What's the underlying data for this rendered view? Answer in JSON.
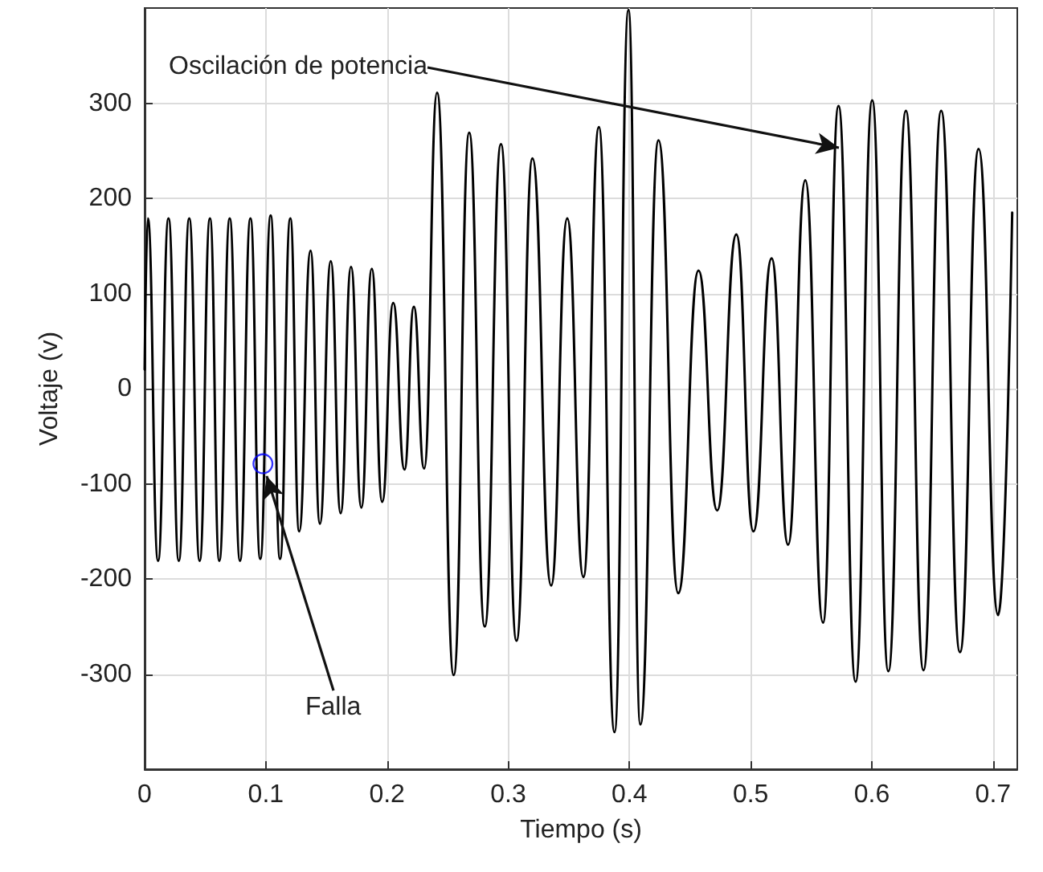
{
  "chart_data": {
    "type": "line",
    "xlabel": "Tiempo (s)",
    "ylabel": "Voltaje (v)",
    "xlim": [
      0,
      0.72
    ],
    "xticks": [
      0,
      0.1,
      0.2,
      0.3,
      0.4,
      0.5,
      0.6,
      0.7
    ],
    "ylim": [
      -400,
      400
    ],
    "yticks": [
      -300,
      -200,
      -100,
      0,
      100,
      200,
      300
    ],
    "grid": true,
    "marker": "none",
    "line_style": "solid",
    "series": [
      {
        "color": "#000000",
        "x": [
          0,
          0.0026,
          0.0111,
          0.0197,
          0.0282,
          0.0368,
          0.0454,
          0.0539,
          0.0616,
          0.0702,
          0.0787,
          0.0873,
          0.0954,
          0.104,
          0.1117,
          0.1202,
          0.1275,
          0.1369,
          0.1446,
          0.1536,
          0.1617,
          0.1703,
          0.1788,
          0.1874,
          0.196,
          0.2051,
          0.2144,
          0.2221,
          0.2306,
          0.2413,
          0.255,
          0.2678,
          0.2806,
          0.294,
          0.3068,
          0.32,
          0.3354,
          0.3487,
          0.362,
          0.3748,
          0.3877,
          0.3992,
          0.409,
          0.424,
          0.4403,
          0.457,
          0.4724,
          0.4882,
          0.5023,
          0.5173,
          0.5309,
          0.5451,
          0.5597,
          0.5725,
          0.5866,
          0.6003,
          0.6136,
          0.6281,
          0.6426,
          0.6572,
          0.6727,
          0.6881,
          0.7042,
          0.7158
        ],
        "values": [
          20,
          179,
          -181,
          179,
          -181,
          179,
          -181,
          179,
          -181,
          179,
          -181,
          179,
          -179,
          182,
          -179,
          179,
          -150,
          145,
          -142,
          134,
          -131,
          128,
          -125,
          126,
          -119,
          90,
          -85,
          86,
          -84,
          311,
          -301,
          269,
          -250,
          257,
          -265,
          242,
          -207,
          179,
          -198,
          275,
          -361,
          398,
          -353,
          261,
          -215,
          124,
          -128,
          162,
          -150,
          137,
          -164,
          219,
          -246,
          297,
          -308,
          303,
          -297,
          292,
          -296,
          292,
          -277,
          252,
          -238,
          185
        ]
      },
      {
        "type": "scatter",
        "marker": "circle",
        "color": "#0000ff",
        "x": [
          0.0976
        ],
        "values": [
          -79
        ]
      }
    ],
    "annotations": [
      "Oscilación de potencia",
      {
        "text": "Falla",
        "x": 0.0976,
        "y": -79
      }
    ]
  }
}
